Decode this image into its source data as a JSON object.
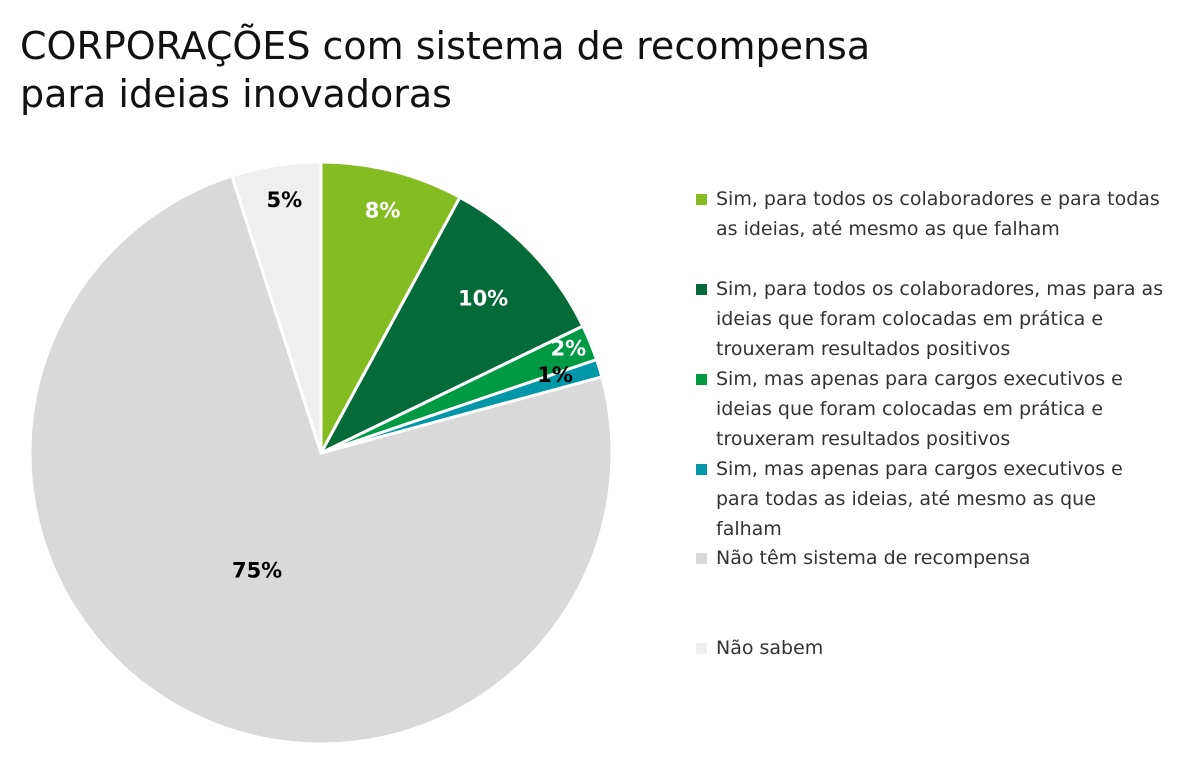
{
  "chart_data": {
    "type": "pie",
    "title": "CORPORAÇÕES com sistema de recompensa\npara ideias inovadoras",
    "slices": [
      {
        "label": "Sim, para todos os colaboradores e para todas as ideias, até mesmo as que falham",
        "value": 8,
        "value_label": "8%",
        "color": "#85bc22",
        "label_color": "#ffffff"
      },
      {
        "label": "Sim, para todos os colaboradores, mas para as ideias que foram colocadas em prática e trouxeram resultados positivos",
        "value": 10,
        "value_label": "10%",
        "color": "#046a38",
        "label_color": "#ffffff"
      },
      {
        "label": "Sim, mas apenas para cargos executivos e ideias que foram colocadas em prática e trouxeram resultados positivos",
        "value": 2,
        "value_label": "2%",
        "color": "#009a44",
        "label_color": "#ffffff"
      },
      {
        "label": "Sim, mas apenas para cargos executivos e para todas as ideias, até mesmo as que falham",
        "value": 1,
        "value_label": "1%",
        "color": "#0097a9",
        "label_color": "#000000"
      },
      {
        "label": "Não têm sistema de recompensa",
        "value": 75,
        "value_label": "75%",
        "color": "#d9d9d9",
        "label_color": "#000000"
      },
      {
        "label": "Não sabem",
        "value": 5,
        "value_label": "5%",
        "color": "#efefef",
        "label_color": "#000000"
      }
    ],
    "start_angle": "12 o'clock",
    "direction": "clockwise",
    "legend_position": "right"
  }
}
